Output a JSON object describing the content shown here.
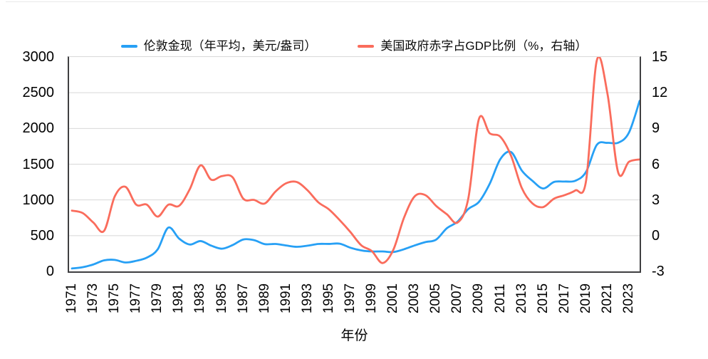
{
  "style": {
    "background": "#FFFFFF",
    "grid_color": "#D8D8D8",
    "axis_color": "#3F3F41",
    "text_color": "#000000",
    "hairline_color": "#E9E9E9"
  },
  "chart_data": {
    "type": "line",
    "smooth": true,
    "grid": true,
    "legend_position": "top",
    "title": "",
    "xlabel": "年份",
    "years": [
      1971,
      1972,
      1973,
      1974,
      1975,
      1976,
      1977,
      1978,
      1979,
      1980,
      1981,
      1982,
      1983,
      1984,
      1985,
      1986,
      1987,
      1988,
      1989,
      1990,
      1991,
      1992,
      1993,
      1994,
      1995,
      1996,
      1997,
      1998,
      1999,
      2000,
      2001,
      2002,
      2003,
      2004,
      2005,
      2006,
      2007,
      2008,
      2009,
      2010,
      2011,
      2012,
      2013,
      2014,
      2015,
      2016,
      2017,
      2018,
      2019,
      2020,
      2021,
      2022,
      2023,
      2024
    ],
    "x_tick_labels": [
      "1971",
      "1973",
      "1975",
      "1977",
      "1979",
      "1981",
      "1983",
      "1985",
      "1987",
      "1989",
      "1991",
      "1993",
      "1995",
      "1997",
      "1999",
      "2001",
      "2003",
      "2005",
      "2007",
      "2009",
      "2011",
      "2013",
      "2015",
      "2017",
      "2019",
      "2021",
      "2023"
    ],
    "left_axis": {
      "min": 0,
      "max": 3000,
      "ticks": [
        0,
        500,
        1000,
        1500,
        2000,
        2500,
        3000
      ],
      "grid_values": [
        500,
        1000,
        1500,
        2000,
        2500
      ]
    },
    "right_axis": {
      "min": -3,
      "max": 15,
      "ticks": [
        -3,
        0,
        3,
        6,
        9,
        12,
        15
      ]
    },
    "series": [
      {
        "key": "gold-price",
        "name": "伦敦金现（年平均，美元/盎司）",
        "axis": "left",
        "color": "#27A0F5",
        "values": [
          40.8,
          58.2,
          97.3,
          154.0,
          160.9,
          124.7,
          147.7,
          193.2,
          306.7,
          612.6,
          460.0,
          375.8,
          424.4,
          360.5,
          317.3,
          367.9,
          446.5,
          437.0,
          381.4,
          383.5,
          362.1,
          343.8,
          359.8,
          384.0,
          384.2,
          387.9,
          331.1,
          294.1,
          278.9,
          279.1,
          271.0,
          309.7,
          363.4,
          409.7,
          444.5,
          603.5,
          695.4,
          871.9,
          972.4,
          1224.5,
          1571.5,
          1669.0,
          1411.2,
          1266.4,
          1160.1,
          1250.8,
          1257.2,
          1268.5,
          1392.6,
          1769.6,
          1798.6,
          1800.1,
          1940.5,
          2386.2
        ]
      },
      {
        "key": "us-deficit-gdp",
        "name": "美国政府赤字占GDP比例（%，右轴）",
        "axis": "right",
        "color": "#FA6C5C",
        "values": [
          2.1,
          1.9,
          1.1,
          0.4,
          3.3,
          4.1,
          2.6,
          2.6,
          1.6,
          2.6,
          2.5,
          3.9,
          5.9,
          4.7,
          5.0,
          4.9,
          3.1,
          3.0,
          2.7,
          3.7,
          4.4,
          4.5,
          3.8,
          2.8,
          2.2,
          1.3,
          0.3,
          -0.8,
          -1.3,
          -2.3,
          -1.2,
          1.5,
          3.3,
          3.4,
          2.5,
          1.8,
          1.1,
          3.1,
          9.8,
          8.6,
          8.3,
          6.7,
          4.0,
          2.7,
          2.4,
          3.1,
          3.4,
          3.8,
          4.6,
          14.7,
          11.9,
          5.3,
          6.2,
          6.4
        ]
      }
    ]
  }
}
